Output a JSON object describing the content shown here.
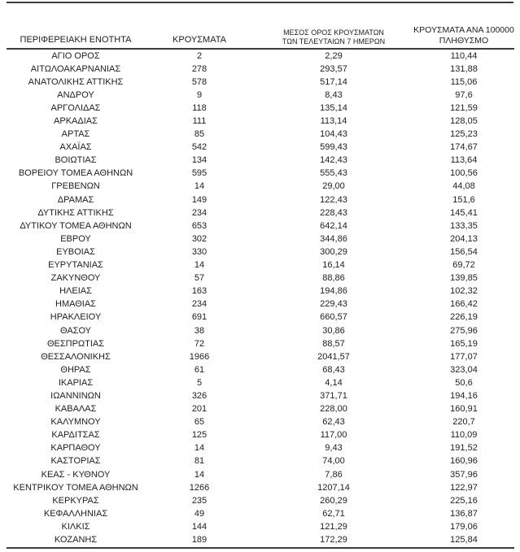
{
  "colors": {
    "rule": "#3d3d3d",
    "text": "#212121",
    "background": "#ffffff"
  },
  "table": {
    "header": {
      "col1": "ΠΕΡΙΦΕΡΕΙΑΚΗ ΕΝΟΤΗΤΑ",
      "col2": "ΚΡΟΥΣΜΑΤΑ",
      "col3_line1": "ΜΕΣΟΣ ΟΡΟΣ ΚΡΟΥΣΜΑΤΩΝ",
      "col3_line2": "ΤΩΝ ΤΕΛΕΥΤΑΙΩΝ 7 ΗΜΕΡΩΝ",
      "col4_line1": "ΚΡΟΥΣΜΑΤΑ ΑΝΑ 100000",
      "col4_line2": "ΠΛΗΘΥΣΜΟ"
    },
    "rows": [
      [
        "ΑΓΙΟ ΟΡΟΣ",
        "2",
        "2,29",
        "110,44"
      ],
      [
        "ΑΙΤΩΛΟΑΚΑΡΝΑΝΙΑΣ",
        "278",
        "293,57",
        "131,88"
      ],
      [
        "ΑΝΑΤΟΛΙΚΗΣ ΑΤΤΙΚΗΣ",
        "578",
        "517,14",
        "115,06"
      ],
      [
        "ΑΝΔΡΟΥ",
        "9",
        "8,43",
        "97,6"
      ],
      [
        "ΑΡΓΟΛΙΔΑΣ",
        "118",
        "135,14",
        "121,59"
      ],
      [
        "ΑΡΚΑΔΙΑΣ",
        "111",
        "113,14",
        "128,05"
      ],
      [
        "ΑΡΤΑΣ",
        "85",
        "104,43",
        "125,23"
      ],
      [
        "ΑΧΑΪΑΣ",
        "542",
        "599,43",
        "174,67"
      ],
      [
        "ΒΟΙΩΤΙΑΣ",
        "134",
        "142,43",
        "113,64"
      ],
      [
        "ΒΟΡΕΙΟΥ ΤΟΜΕΑ ΑΘΗΝΩΝ",
        "595",
        "555,43",
        "100,56"
      ],
      [
        "ΓΡΕΒΕΝΩΝ",
        "14",
        "29,00",
        "44,08"
      ],
      [
        "ΔΡΑΜΑΣ",
        "149",
        "122,43",
        "151,6"
      ],
      [
        "ΔΥΤΙΚΗΣ ΑΤΤΙΚΗΣ",
        "234",
        "228,43",
        "145,41"
      ],
      [
        "ΔΥΤΙΚΟΥ ΤΟΜΕΑ ΑΘΗΝΩΝ",
        "653",
        "642,14",
        "133,35"
      ],
      [
        "ΕΒΡΟΥ",
        "302",
        "344,86",
        "204,13"
      ],
      [
        "ΕΥΒΟΙΑΣ",
        "330",
        "300,29",
        "156,54"
      ],
      [
        "ΕΥΡΥΤΑΝΙΑΣ",
        "14",
        "16,14",
        "69,72"
      ],
      [
        "ΖΑΚΥΝΘΟΥ",
        "57",
        "88,86",
        "139,85"
      ],
      [
        "ΗΛΕΙΑΣ",
        "163",
        "194,86",
        "102,32"
      ],
      [
        "ΗΜΑΘΙΑΣ",
        "234",
        "229,43",
        "166,42"
      ],
      [
        "ΗΡΑΚΛΕΙΟΥ",
        "691",
        "660,57",
        "226,19"
      ],
      [
        "ΘΑΣΟΥ",
        "38",
        "30,86",
        "275,96"
      ],
      [
        "ΘΕΣΠΡΩΤΙΑΣ",
        "72",
        "88,57",
        "165,19"
      ],
      [
        "ΘΕΣΣΑΛΟΝΙΚΗΣ",
        "1966",
        "2041,57",
        "177,07"
      ],
      [
        "ΘΗΡΑΣ",
        "61",
        "68,43",
        "323,04"
      ],
      [
        "ΙΚΑΡΙΑΣ",
        "5",
        "4,14",
        "50,6"
      ],
      [
        "ΙΩΑΝΝΙΝΩΝ",
        "326",
        "371,71",
        "194,16"
      ],
      [
        "ΚΑΒΑΛΑΣ",
        "201",
        "228,00",
        "160,91"
      ],
      [
        "ΚΑΛΥΜΝΟΥ",
        "65",
        "62,43",
        "220,7"
      ],
      [
        "ΚΑΡΔΙΤΣΑΣ",
        "125",
        "117,00",
        "110,09"
      ],
      [
        "ΚΑΡΠΑΘΟΥ",
        "14",
        "9,43",
        "191,52"
      ],
      [
        "ΚΑΣΤΟΡΙΑΣ",
        "81",
        "74,00",
        "160,96"
      ],
      [
        "ΚΕΑΣ - ΚΥΘΝΟΥ",
        "14",
        "7,86",
        "357,96"
      ],
      [
        "ΚΕΝΤΡΙΚΟΥ ΤΟΜΕΑ ΑΘΗΝΩΝ",
        "1266",
        "1207,14",
        "122,97"
      ],
      [
        "ΚΕΡΚΥΡΑΣ",
        "235",
        "260,29",
        "225,16"
      ],
      [
        "ΚΕΦΑΛΛΗΝΙΑΣ",
        "49",
        "62,71",
        "136,87"
      ],
      [
        "ΚΙΛΚΙΣ",
        "144",
        "121,29",
        "179,06"
      ],
      [
        "ΚΟΖΑΝΗΣ",
        "189",
        "172,29",
        "125,84"
      ]
    ]
  }
}
